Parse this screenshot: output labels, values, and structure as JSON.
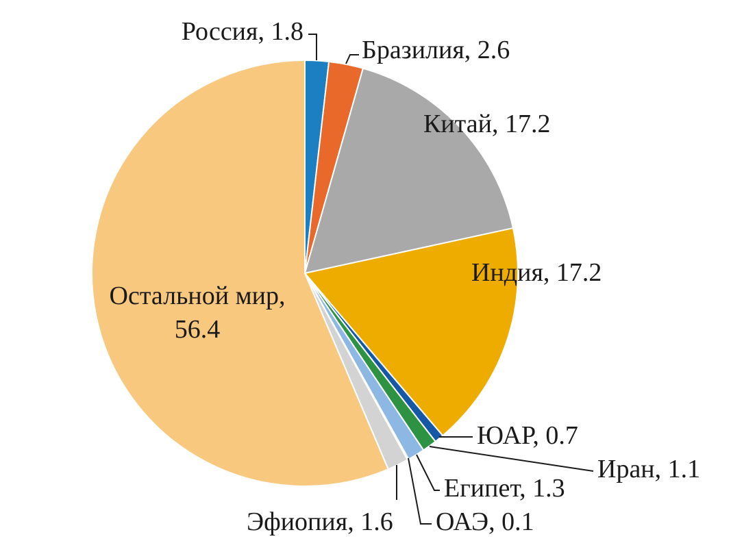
{
  "chart_data": {
    "type": "pie",
    "start_angle_deg": 0,
    "direction": "clockwise",
    "slices": [
      {
        "label": "Россия",
        "value": 1.8,
        "color": "#1b7fc2",
        "text": "Россия, 1.8"
      },
      {
        "label": "Бразилия",
        "value": 2.6,
        "color": "#e9692a",
        "text": "Бразилия, 2.6"
      },
      {
        "label": "Китай",
        "value": 17.2,
        "color": "#a9a9a9",
        "text": "Китай, 17.2"
      },
      {
        "label": "Индия",
        "value": 17.2,
        "color": "#eeac00",
        "text": "Индия, 17.2"
      },
      {
        "label": "ЮАР",
        "value": 0.7,
        "color": "#1558a6",
        "text": "ЮАР, 0.7"
      },
      {
        "label": "Иран",
        "value": 1.1,
        "color": "#2e9243",
        "text": "Иран, 1.1"
      },
      {
        "label": "Египет",
        "value": 1.3,
        "color": "#8db8e4",
        "text": "Египет, 1.3"
      },
      {
        "label": "ОАЭ",
        "value": 0.1,
        "color": "#6f6f6f",
        "text": "ОАЭ, 0.1"
      },
      {
        "label": "Эфиопия",
        "value": 1.6,
        "color": "#d3d3d3",
        "text": "Эфиопия, 1.6"
      },
      {
        "label": "Остальной мир",
        "value": 56.4,
        "color": "#f9c87f",
        "text": [
          "Остальной мир,",
          "56.4"
        ]
      }
    ]
  }
}
